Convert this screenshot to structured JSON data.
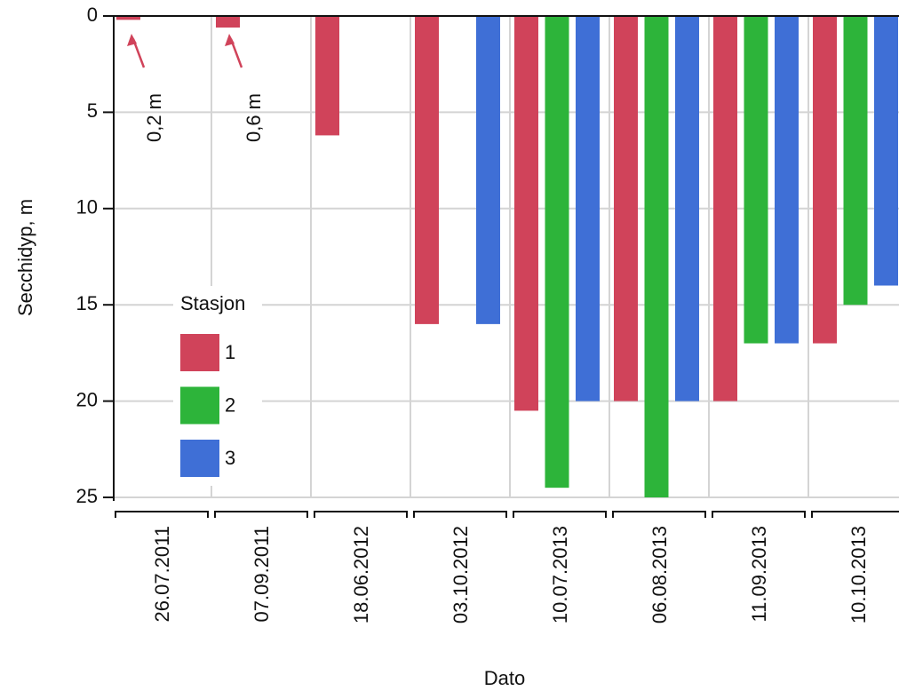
{
  "chart_data": {
    "type": "bar",
    "x_label": "Dato",
    "y_label": "Secchidyp, m",
    "categories": [
      "26.07.2011",
      "07.09.2011",
      "18.06.2012",
      "03.10.2012",
      "10.07.2013",
      "06.08.2013",
      "11.09.2013",
      "10.10.2013"
    ],
    "legend_title": "Stasjon",
    "series": [
      {
        "name": "1",
        "color": "#d0435a",
        "values": [
          0.2,
          0.6,
          6.2,
          16,
          20.5,
          20,
          20,
          17
        ]
      },
      {
        "name": "2",
        "color": "#2db43a",
        "values": [
          null,
          null,
          null,
          null,
          24.5,
          25,
          17,
          15
        ]
      },
      {
        "name": "3",
        "color": "#3f6fd6",
        "values": [
          null,
          null,
          null,
          16,
          20,
          20,
          17,
          14
        ]
      }
    ],
    "ylim": [
      0,
      25
    ],
    "yticks": [
      0,
      5,
      10,
      15,
      20,
      25
    ],
    "y_inverted": true,
    "grid": true,
    "annotations": [
      {
        "text": "0,2 m"
      },
      {
        "text": "0,6 m"
      }
    ]
  }
}
